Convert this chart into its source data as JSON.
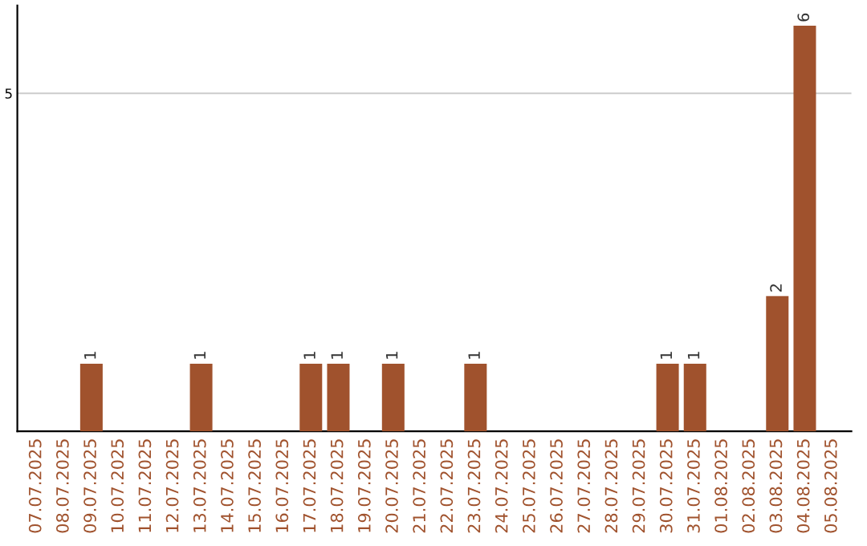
{
  "chart_data": {
    "type": "bar",
    "categories": [
      "07.07.2025",
      "08.07.2025",
      "09.07.2025",
      "10.07.2025",
      "11.07.2025",
      "12.07.2025",
      "13.07.2025",
      "14.07.2025",
      "15.07.2025",
      "16.07.2025",
      "17.07.2025",
      "18.07.2025",
      "19.07.2025",
      "20.07.2025",
      "21.07.2025",
      "22.07.2025",
      "23.07.2025",
      "24.07.2025",
      "25.07.2025",
      "26.07.2025",
      "27.07.2025",
      "28.07.2025",
      "29.07.2025",
      "30.07.2025",
      "31.07.2025",
      "01.08.2025",
      "02.08.2025",
      "03.08.2025",
      "04.08.2025",
      "05.08.2025"
    ],
    "values": [
      0,
      0,
      1,
      0,
      0,
      0,
      1,
      0,
      0,
      0,
      1,
      1,
      0,
      1,
      0,
      0,
      1,
      0,
      0,
      0,
      0,
      0,
      0,
      1,
      1,
      0,
      0,
      2,
      6,
      0
    ],
    "value_labels": [
      null,
      null,
      "1",
      null,
      null,
      null,
      "1",
      null,
      null,
      null,
      "1",
      "1",
      null,
      "1",
      null,
      null,
      "1",
      null,
      null,
      null,
      null,
      null,
      null,
      "1",
      "1",
      null,
      null,
      "2",
      "6",
      null
    ],
    "color": "#a0522d",
    "ylim": [
      0,
      6.3
    ],
    "yticks": [
      5
    ],
    "grid": "y"
  }
}
